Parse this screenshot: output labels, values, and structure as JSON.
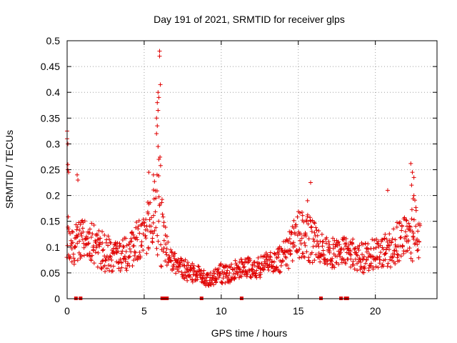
{
  "chart_data": {
    "type": "scatter",
    "title": "Day 191 of 2021, SRMTID for receiver glps",
    "xlabel": "GPS time / hours",
    "ylabel": "SRMTID / TECUs",
    "xlim": [
      0,
      24
    ],
    "ylim": [
      0,
      0.5
    ],
    "xticks": [
      0,
      5,
      10,
      15,
      20
    ],
    "xtick_labels": [
      "0",
      "5",
      "10",
      "15",
      "20"
    ],
    "yticks": [
      0,
      0.05,
      0.1,
      0.15,
      0.2,
      0.25,
      0.3,
      0.35,
      0.4,
      0.45,
      0.5
    ],
    "ytick_labels": [
      "0",
      "0.05",
      "0.1",
      "0.15",
      "0.2",
      "0.25",
      "0.3",
      "0.35",
      "0.4",
      "0.45",
      "0.5"
    ],
    "grid": true,
    "marker": "+",
    "color": "#e00000",
    "series": [
      {
        "name": "SRMTID",
        "description": "approximate profile; individual samples scattered around this envelope",
        "x": [
          0.0,
          0.1,
          0.3,
          0.6,
          1.0,
          1.5,
          2.0,
          2.5,
          3.0,
          3.5,
          4.0,
          4.5,
          5.0,
          5.5,
          5.8,
          6.0,
          6.2,
          6.6,
          7.0,
          7.5,
          8.0,
          8.5,
          9.0,
          9.5,
          10.0,
          10.5,
          11.0,
          11.5,
          12.0,
          12.5,
          13.0,
          13.5,
          14.0,
          14.5,
          15.0,
          15.5,
          16.0,
          16.5,
          17.0,
          17.5,
          18.0,
          18.5,
          19.0,
          19.5,
          20.0,
          20.5,
          21.0,
          21.5,
          22.0,
          22.3,
          22.6,
          22.9
        ],
        "y": [
          0.12,
          0.11,
          0.1,
          0.11,
          0.12,
          0.11,
          0.1,
          0.09,
          0.08,
          0.08,
          0.09,
          0.11,
          0.13,
          0.15,
          0.17,
          0.19,
          0.13,
          0.08,
          0.07,
          0.06,
          0.05,
          0.05,
          0.04,
          0.04,
          0.05,
          0.05,
          0.06,
          0.06,
          0.06,
          0.06,
          0.07,
          0.07,
          0.08,
          0.1,
          0.12,
          0.12,
          0.11,
          0.1,
          0.09,
          0.09,
          0.09,
          0.09,
          0.08,
          0.08,
          0.09,
          0.09,
          0.1,
          0.11,
          0.12,
          0.14,
          0.13,
          0.11
        ],
        "spread": [
          0.04,
          0.05,
          0.04,
          0.04,
          0.04,
          0.04,
          0.04,
          0.04,
          0.03,
          0.03,
          0.04,
          0.04,
          0.05,
          0.06,
          0.08,
          0.14,
          0.06,
          0.02,
          0.02,
          0.02,
          0.02,
          0.015,
          0.015,
          0.015,
          0.02,
          0.02,
          0.02,
          0.02,
          0.02,
          0.02,
          0.02,
          0.02,
          0.03,
          0.04,
          0.05,
          0.05,
          0.04,
          0.03,
          0.03,
          0.03,
          0.03,
          0.03,
          0.03,
          0.03,
          0.03,
          0.03,
          0.04,
          0.04,
          0.05,
          0.07,
          0.06,
          0.04
        ]
      }
    ],
    "outliers": [
      {
        "x": 0.0,
        "y": 0.325
      },
      {
        "x": 0.0,
        "y": 0.31
      },
      {
        "x": 0.05,
        "y": 0.3
      },
      {
        "x": 0.05,
        "y": 0.26
      },
      {
        "x": 0.05,
        "y": 0.25
      },
      {
        "x": 0.1,
        "y": 0.245
      },
      {
        "x": 0.65,
        "y": 0.24
      },
      {
        "x": 0.7,
        "y": 0.23
      },
      {
        "x": 6.0,
        "y": 0.48
      },
      {
        "x": 6.0,
        "y": 0.47
      },
      {
        "x": 6.05,
        "y": 0.415
      },
      {
        "x": 5.9,
        "y": 0.4
      },
      {
        "x": 5.95,
        "y": 0.39
      },
      {
        "x": 5.85,
        "y": 0.38
      },
      {
        "x": 5.9,
        "y": 0.365
      },
      {
        "x": 5.8,
        "y": 0.35
      },
      {
        "x": 5.85,
        "y": 0.335
      },
      {
        "x": 5.8,
        "y": 0.32
      },
      {
        "x": 5.9,
        "y": 0.295
      },
      {
        "x": 5.95,
        "y": 0.27
      },
      {
        "x": 5.6,
        "y": 0.24
      },
      {
        "x": 5.3,
        "y": 0.245
      },
      {
        "x": 15.8,
        "y": 0.225
      },
      {
        "x": 15.6,
        "y": 0.19
      },
      {
        "x": 22.3,
        "y": 0.262
      },
      {
        "x": 22.4,
        "y": 0.245
      },
      {
        "x": 22.5,
        "y": 0.235
      },
      {
        "x": 22.35,
        "y": 0.22
      },
      {
        "x": 20.8,
        "y": 0.21
      },
      {
        "x": 22.5,
        "y": 0.2
      }
    ],
    "data_gaps_marked_at_zero": [
      0.55,
      0.85,
      6.15,
      6.3,
      6.45,
      8.7,
      11.3,
      16.45,
      17.75,
      18.05,
      18.15
    ]
  }
}
